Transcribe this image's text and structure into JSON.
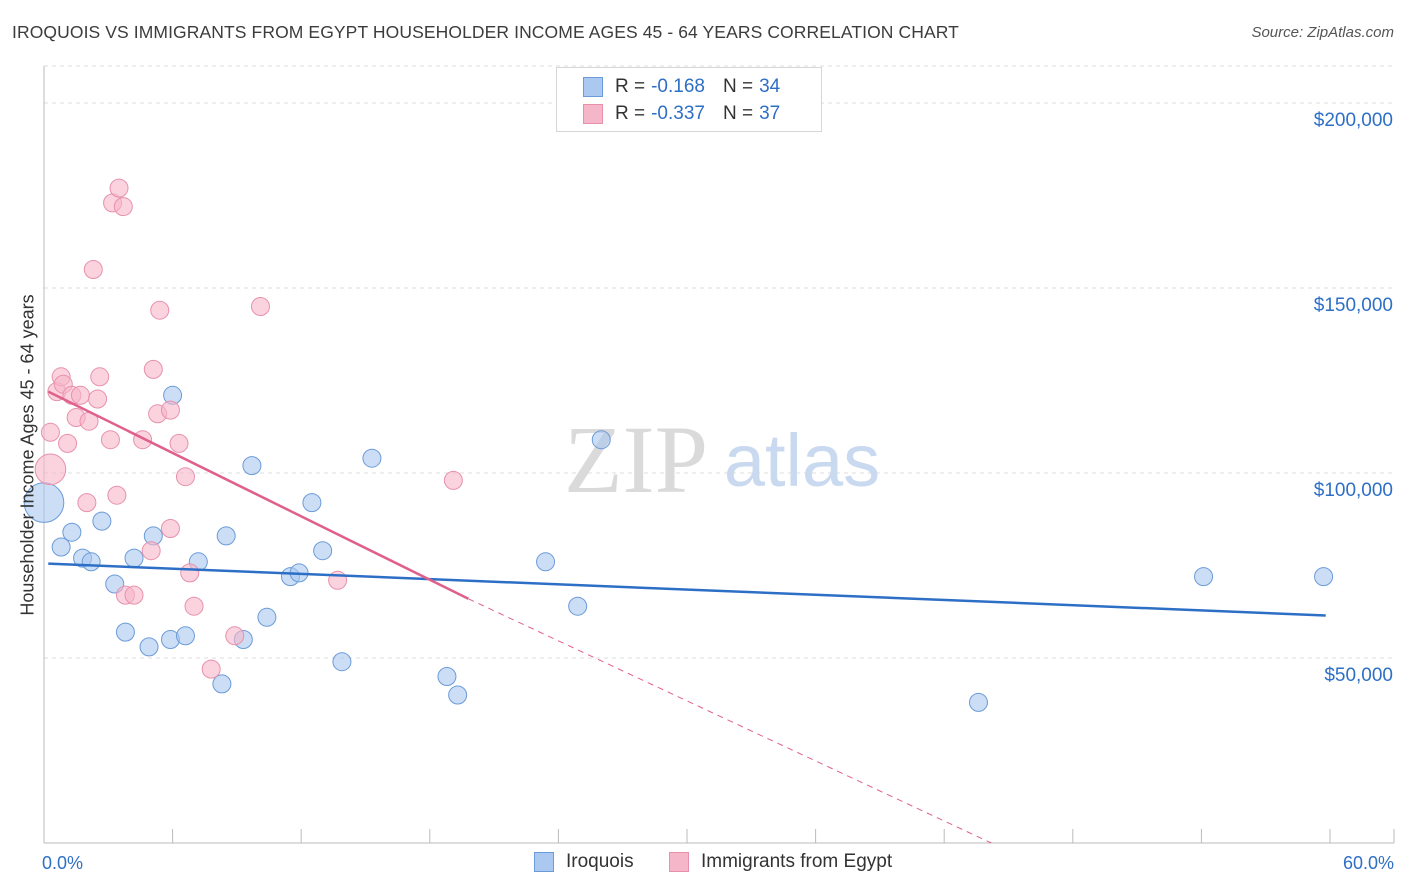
{
  "title": "IROQUOIS VS IMMIGRANTS FROM EGYPT HOUSEHOLDER INCOME AGES 45 - 64 YEARS CORRELATION CHART",
  "source": "Source: ZipAtlas.com",
  "watermark": {
    "zip": "ZIP",
    "atlas": "atlas"
  },
  "legend": {
    "rows": [
      {
        "r_label": "R =",
        "r_value": "-0.168",
        "n_label": "N =",
        "n_value": "34"
      },
      {
        "r_label": "R =",
        "r_value": "-0.337",
        "n_label": "N =",
        "n_value": "37"
      }
    ]
  },
  "bottom_legend": [
    "Iroquois",
    "Immigrants from Egypt"
  ],
  "x_axis": {
    "min_label": "0.0%",
    "max_label": "60.0%"
  },
  "colors": {
    "iroquois_fill": "#aac8f0",
    "iroquois_stroke": "#6b9bd8",
    "iroquois_line": "#2e6fc6",
    "egypt_fill": "#f6b6c9",
    "egypt_stroke": "#e891ad",
    "egypt_line": "#e0608c",
    "accent_text": "#2e6fc6",
    "grid": "#dcdcdc"
  },
  "chart_data": {
    "type": "scatter",
    "xlabel": "",
    "ylabel": "Householder Income Ages 45 - 64 years",
    "xlim": [
      0,
      60
    ],
    "ylim": [
      0,
      210000
    ],
    "y_ticks": [
      50000,
      100000,
      150000,
      200000
    ],
    "y_tick_labels": [
      "$50,000",
      "$100,000",
      "$150,000",
      "$200,000"
    ],
    "grid": "horizontal-dashed",
    "legend_position": "top-center",
    "series": [
      {
        "name": "Iroquois",
        "points": [
          [
            0.0,
            92000,
            2.2
          ],
          [
            0.8,
            80000,
            1
          ],
          [
            1.3,
            84000,
            1
          ],
          [
            1.8,
            77000,
            1
          ],
          [
            2.2,
            76000,
            1
          ],
          [
            2.7,
            87000,
            1
          ],
          [
            3.3,
            70000,
            1
          ],
          [
            3.8,
            57000,
            1
          ],
          [
            4.2,
            77000,
            1
          ],
          [
            4.9,
            53000,
            1
          ],
          [
            5.1,
            83000,
            1
          ],
          [
            5.9,
            55000,
            1
          ],
          [
            6.0,
            121000,
            1
          ],
          [
            6.6,
            56000,
            1
          ],
          [
            7.2,
            76000,
            1
          ],
          [
            8.3,
            43000,
            1
          ],
          [
            8.5,
            83000,
            1
          ],
          [
            9.3,
            55000,
            1
          ],
          [
            9.7,
            102000,
            1
          ],
          [
            10.4,
            61000,
            1
          ],
          [
            11.5,
            72000,
            1
          ],
          [
            11.9,
            73000,
            1
          ],
          [
            12.5,
            92000,
            1
          ],
          [
            13.0,
            79000,
            1
          ],
          [
            13.9,
            49000,
            1
          ],
          [
            15.3,
            104000,
            1
          ],
          [
            18.8,
            45000,
            1
          ],
          [
            19.3,
            40000,
            1
          ],
          [
            23.4,
            76000,
            1
          ],
          [
            24.9,
            64000,
            1
          ],
          [
            26.0,
            109000,
            1
          ],
          [
            43.6,
            38000,
            1
          ],
          [
            54.1,
            72000,
            1
          ],
          [
            59.7,
            72000,
            1
          ]
        ],
        "trend": {
          "x": [
            0.2,
            59.8
          ],
          "y": [
            75500,
            61500
          ]
        }
      },
      {
        "name": "Immigrants from Egypt",
        "points": [
          [
            0.3,
            101000,
            1.7
          ],
          [
            0.3,
            111000,
            1
          ],
          [
            0.6,
            122000,
            1
          ],
          [
            0.8,
            126000,
            1
          ],
          [
            0.9,
            124000,
            1
          ],
          [
            1.1,
            108000,
            1
          ],
          [
            1.3,
            121000,
            1
          ],
          [
            1.5,
            115000,
            1
          ],
          [
            1.7,
            121000,
            1
          ],
          [
            2.0,
            92000,
            1
          ],
          [
            2.1,
            114000,
            1
          ],
          [
            2.3,
            155000,
            1
          ],
          [
            2.5,
            120000,
            1
          ],
          [
            2.6,
            126000,
            1
          ],
          [
            3.1,
            109000,
            1
          ],
          [
            3.2,
            173000,
            1
          ],
          [
            3.4,
            94000,
            1
          ],
          [
            3.5,
            177000,
            1
          ],
          [
            3.7,
            172000,
            1
          ],
          [
            3.8,
            67000,
            1
          ],
          [
            4.2,
            67000,
            1
          ],
          [
            4.6,
            109000,
            1
          ],
          [
            5.0,
            79000,
            1
          ],
          [
            5.1,
            128000,
            1
          ],
          [
            5.3,
            116000,
            1
          ],
          [
            5.4,
            144000,
            1
          ],
          [
            5.9,
            117000,
            1
          ],
          [
            5.9,
            85000,
            1
          ],
          [
            6.3,
            108000,
            1
          ],
          [
            6.6,
            99000,
            1
          ],
          [
            6.8,
            73000,
            1
          ],
          [
            7.0,
            64000,
            1
          ],
          [
            7.8,
            47000,
            1
          ],
          [
            8.9,
            56000,
            1
          ],
          [
            10.1,
            145000,
            1
          ],
          [
            13.7,
            71000,
            1
          ],
          [
            19.1,
            98000,
            1
          ]
        ],
        "trend": {
          "x": [
            0.2,
            19.8
          ],
          "y": [
            122000,
            66000
          ]
        },
        "trend_extension": {
          "x": [
            19.8,
            44.2
          ],
          "y": [
            66000,
            0
          ]
        }
      }
    ]
  }
}
